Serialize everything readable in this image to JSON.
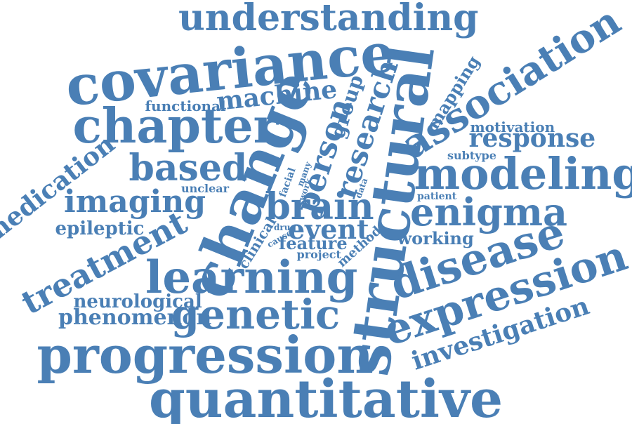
{
  "cloud": {
    "color": "#4a7fb5",
    "words": [
      {
        "key": "understanding",
        "text": "understanding",
        "weight": 0.62
      },
      {
        "key": "covariance",
        "text": "covariance",
        "weight": 0.9
      },
      {
        "key": "association",
        "text": "association",
        "weight": 0.62
      },
      {
        "key": "chapter",
        "text": "chapter",
        "weight": 0.86
      },
      {
        "key": "change",
        "text": "change",
        "weight": 1.0
      },
      {
        "key": "structural",
        "text": "structural",
        "weight": 1.0
      },
      {
        "key": "research",
        "text": "research",
        "weight": 0.52
      },
      {
        "key": "person",
        "text": "person",
        "weight": 0.5
      },
      {
        "key": "group",
        "text": "group",
        "weight": 0.35
      },
      {
        "key": "mapping",
        "text": "mapping",
        "weight": 0.3
      },
      {
        "key": "machine",
        "text": "machine",
        "weight": 0.4
      },
      {
        "key": "functional",
        "text": "functional",
        "weight": 0.25
      },
      {
        "key": "motivation",
        "text": "motivation",
        "weight": 0.25
      },
      {
        "key": "response",
        "text": "response",
        "weight": 0.42
      },
      {
        "key": "subtype",
        "text": "subtype",
        "weight": 0.18
      },
      {
        "key": "modeling",
        "text": "modeling",
        "weight": 0.72
      },
      {
        "key": "based",
        "text": "based",
        "weight": 0.6
      },
      {
        "key": "medication",
        "text": "medication",
        "weight": 0.45
      },
      {
        "key": "imaging",
        "text": "imaging",
        "weight": 0.55
      },
      {
        "key": "unclear",
        "text": "unclear",
        "weight": 0.18
      },
      {
        "key": "facial",
        "text": "facial",
        "weight": 0.14
      },
      {
        "key": "many",
        "text": "many",
        "weight": 0.12
      },
      {
        "key": "work",
        "text": "work",
        "weight": 0.12
      },
      {
        "key": "data",
        "text": "data",
        "weight": 0.12
      },
      {
        "key": "patient",
        "text": "patient",
        "weight": 0.16
      },
      {
        "key": "brain",
        "text": "brain",
        "weight": 0.62
      },
      {
        "key": "enigma",
        "text": "enigma",
        "weight": 0.65
      },
      {
        "key": "epileptic",
        "text": "epileptic",
        "weight": 0.3
      },
      {
        "key": "treatment",
        "text": "treatment",
        "weight": 0.52
      },
      {
        "key": "clinical",
        "text": "clinical",
        "weight": 0.22
      },
      {
        "key": "drug",
        "text": "drug",
        "weight": 0.12
      },
      {
        "key": "cause",
        "text": "cause",
        "weight": 0.12
      },
      {
        "key": "event",
        "text": "event",
        "weight": 0.42
      },
      {
        "key": "feature",
        "text": "feature",
        "weight": 0.3
      },
      {
        "key": "project",
        "text": "project",
        "weight": 0.18
      },
      {
        "key": "method",
        "text": "method",
        "weight": 0.18
      },
      {
        "key": "working",
        "text": "working",
        "weight": 0.3
      },
      {
        "key": "disease",
        "text": "disease",
        "weight": 0.75
      },
      {
        "key": "expression",
        "text": "expression",
        "weight": 0.72
      },
      {
        "key": "learning",
        "text": "learning",
        "weight": 0.82
      },
      {
        "key": "neurological",
        "text": "neurological",
        "weight": 0.35
      },
      {
        "key": "phenomenon",
        "text": "phenomenon",
        "weight": 0.38
      },
      {
        "key": "genetic",
        "text": "genetic",
        "weight": 0.62
      },
      {
        "key": "investigation",
        "text": "investigation",
        "weight": 0.42
      },
      {
        "key": "progression",
        "text": "progression",
        "weight": 0.88
      },
      {
        "key": "quantitative",
        "text": "quantitative",
        "weight": 0.82
      }
    ]
  }
}
